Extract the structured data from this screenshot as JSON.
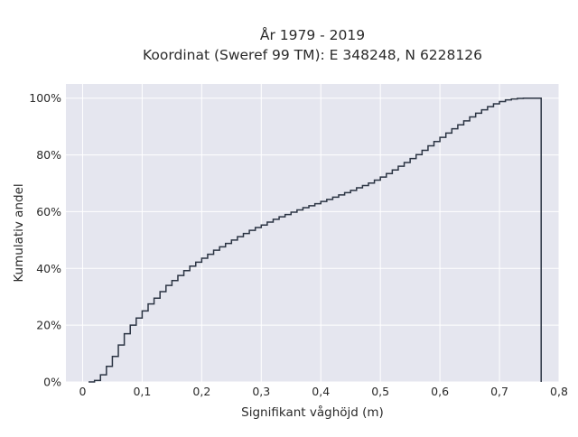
{
  "chart_data": {
    "type": "line",
    "line_shape": "step",
    "title_lines": [
      "År 1979 - 2019",
      "Koordinat (Sweref 99 TM): E 348248, N 6228126"
    ],
    "xlabel": "Signifikant våghöjd (m)",
    "ylabel": "Kumulativ andel",
    "xlim": [
      -0.028,
      0.8
    ],
    "ylim": [
      0,
      1.05
    ],
    "x_ticks": [
      0,
      0.1,
      0.2,
      0.3,
      0.4,
      0.5,
      0.6,
      0.7,
      0.8
    ],
    "x_tick_labels": [
      "0",
      "0,1",
      "0,2",
      "0,3",
      "0,4",
      "0,5",
      "0,6",
      "0,7",
      "0,8"
    ],
    "y_ticks": [
      0,
      0.2,
      0.4,
      0.6,
      0.8,
      1.0
    ],
    "y_tick_labels": [
      "0%",
      "20%",
      "40%",
      "60%",
      "80%",
      "100%"
    ],
    "grid": true,
    "colors": {
      "plot_bg": "#e5e6ef",
      "grid": "#ffffff",
      "line": "#2b3443"
    },
    "series": [
      {
        "x": [
          0.01,
          0.02,
          0.03,
          0.04,
          0.05,
          0.06,
          0.07,
          0.08,
          0.09,
          0.1,
          0.11,
          0.12,
          0.13,
          0.14,
          0.15,
          0.16,
          0.17,
          0.18,
          0.19,
          0.2,
          0.21,
          0.22,
          0.23,
          0.24,
          0.25,
          0.26,
          0.27,
          0.28,
          0.29,
          0.3,
          0.31,
          0.32,
          0.33,
          0.34,
          0.35,
          0.36,
          0.37,
          0.38,
          0.39,
          0.4,
          0.41,
          0.42,
          0.43,
          0.44,
          0.45,
          0.46,
          0.47,
          0.48,
          0.49,
          0.5,
          0.51,
          0.52,
          0.53,
          0.54,
          0.55,
          0.56,
          0.57,
          0.58,
          0.59,
          0.6,
          0.61,
          0.62,
          0.63,
          0.64,
          0.65,
          0.66,
          0.67,
          0.68,
          0.69,
          0.7,
          0.71,
          0.72,
          0.73,
          0.74,
          0.75,
          0.76,
          0.77
        ],
        "y": [
          0.0,
          0.005,
          0.025,
          0.055,
          0.09,
          0.13,
          0.17,
          0.2,
          0.225,
          0.25,
          0.275,
          0.295,
          0.318,
          0.34,
          0.357,
          0.375,
          0.392,
          0.408,
          0.422,
          0.436,
          0.45,
          0.464,
          0.476,
          0.488,
          0.5,
          0.512,
          0.523,
          0.534,
          0.544,
          0.553,
          0.563,
          0.573,
          0.582,
          0.59,
          0.598,
          0.606,
          0.614,
          0.621,
          0.628,
          0.636,
          0.643,
          0.651,
          0.659,
          0.667,
          0.675,
          0.684,
          0.692,
          0.701,
          0.711,
          0.722,
          0.734,
          0.747,
          0.76,
          0.773,
          0.787,
          0.801,
          0.816,
          0.832,
          0.847,
          0.862,
          0.877,
          0.892,
          0.906,
          0.92,
          0.934,
          0.947,
          0.959,
          0.97,
          0.98,
          0.988,
          0.994,
          0.997,
          0.999,
          1.0,
          1.0,
          1.0,
          0.0
        ]
      }
    ]
  }
}
